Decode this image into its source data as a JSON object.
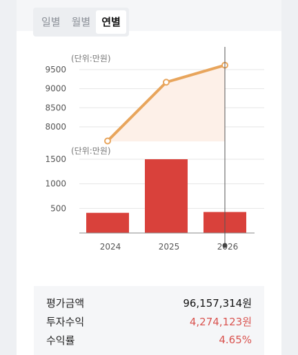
{
  "tabs": [
    {
      "label": "일별",
      "active": false
    },
    {
      "label": "월별",
      "active": false
    },
    {
      "label": "연별",
      "active": true
    }
  ],
  "chart_data": [
    {
      "type": "line",
      "unit_label": "(단위:만원)",
      "x": [
        "2024",
        "2025",
        "2026"
      ],
      "values": [
        7630,
        9170,
        9616
      ],
      "yticks": [
        8000,
        8500,
        9000,
        9500
      ],
      "ylim": [
        7600,
        9800
      ],
      "color": "#e8a55c",
      "fill": "#fdf0e8",
      "grid": true
    },
    {
      "type": "bar",
      "unit_label": "(단위:만원)",
      "categories": [
        "2024",
        "2025",
        "2026"
      ],
      "values": [
        410,
        1500,
        427
      ],
      "yticks": [
        500,
        1000,
        1500
      ],
      "ylim": [
        0,
        1700
      ],
      "color": "#d9413b",
      "grid": true
    }
  ],
  "summary": {
    "rows": [
      {
        "label": "평가금액",
        "value": "96,157,314원",
        "color": "#111111"
      },
      {
        "label": "투자수익",
        "value": "4,274,123원",
        "color": "#d9534f"
      },
      {
        "label": "수익률",
        "value": "4.65%",
        "color": "#d9534f"
      }
    ]
  }
}
